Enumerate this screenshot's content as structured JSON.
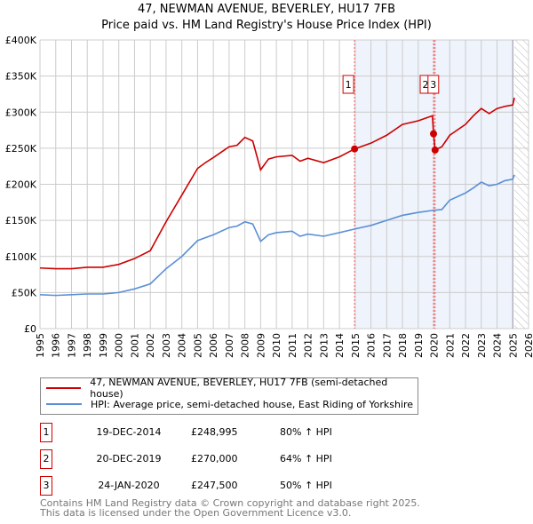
{
  "title": "47, NEWMAN AVENUE, BEVERLEY, HU17 7FB",
  "subtitle": "Price paid vs. HM Land Registry's House Price Index (HPI)",
  "chart_data": {
    "type": "line",
    "ylim": [
      0,
      400000
    ],
    "xlim": [
      1995,
      2026
    ],
    "yticks": [
      0,
      50000,
      100000,
      150000,
      200000,
      250000,
      300000,
      350000,
      400000
    ],
    "ytick_labels": [
      "£0",
      "£50K",
      "£100K",
      "£150K",
      "£200K",
      "£250K",
      "£300K",
      "£350K",
      "£400K"
    ],
    "xticks": [
      1995,
      1996,
      1997,
      1998,
      1999,
      2000,
      2001,
      2002,
      2003,
      2004,
      2005,
      2006,
      2007,
      2008,
      2009,
      2010,
      2011,
      2012,
      2013,
      2014,
      2015,
      2016,
      2017,
      2018,
      2019,
      2020,
      2021,
      2022,
      2023,
      2024,
      2025,
      2026
    ],
    "xtick_labels": [
      "1995",
      "1996",
      "1997",
      "1998",
      "1999",
      "2000",
      "2001",
      "2002",
      "2003",
      "2004",
      "2005",
      "2006",
      "2007",
      "2008",
      "2009",
      "2010",
      "2011",
      "2012",
      "2013",
      "2014",
      "2015",
      "2016",
      "2017",
      "2018",
      "2019",
      "2020",
      "2021",
      "2022",
      "2023",
      "2024",
      "2025",
      "2026"
    ],
    "grid": true,
    "shaded_range": [
      2014.96,
      2025.0
    ],
    "forecast_hatch_from": 2025.1,
    "series": [
      {
        "name": "47, NEWMAN AVENUE, BEVERLEY, HU17 7FB (semi-detached house)",
        "color": "#cc0000",
        "x": [
          1995,
          1996,
          1997,
          1998,
          1999,
          2000,
          2001,
          2002,
          2003,
          2004,
          2005,
          2005.5,
          2006,
          2007,
          2007.5,
          2008,
          2008.5,
          2009,
          2009.5,
          2010,
          2011,
          2011.5,
          2012,
          2013,
          2014,
          2014.96,
          2016,
          2017,
          2018,
          2019,
          2019.9,
          2019.97,
          2020.07,
          2020.5,
          2021,
          2022,
          2022.5,
          2023,
          2023.5,
          2024,
          2024.5,
          2025,
          2025.1
        ],
        "y": [
          84000,
          83000,
          83000,
          85000,
          85000,
          89000,
          97000,
          108000,
          148000,
          185000,
          222000,
          230000,
          237000,
          252000,
          254000,
          265000,
          260000,
          220000,
          235000,
          238000,
          240000,
          232000,
          236000,
          230000,
          238000,
          248995,
          257000,
          268000,
          283000,
          288000,
          295000,
          270000,
          247500,
          252000,
          268000,
          283000,
          295000,
          305000,
          298000,
          305000,
          308000,
          310000,
          320000
        ]
      },
      {
        "name": "HPI: Average price, semi-detached house, East Riding of Yorkshire",
        "color": "#5b8fd6",
        "x": [
          1995,
          1996,
          1997,
          1998,
          1999,
          2000,
          2001,
          2002,
          2003,
          2004,
          2005,
          2006,
          2007,
          2007.5,
          2008,
          2008.5,
          2009,
          2009.5,
          2010,
          2011,
          2011.5,
          2012,
          2013,
          2014,
          2014.96,
          2016,
          2017,
          2018,
          2019,
          2019.97,
          2020.5,
          2021,
          2022,
          2022.5,
          2023,
          2023.5,
          2024,
          2024.5,
          2025,
          2025.1
        ],
        "y": [
          47000,
          46000,
          47000,
          48000,
          48000,
          50000,
          55000,
          62000,
          83000,
          100000,
          122000,
          130000,
          140000,
          142000,
          148000,
          145000,
          121000,
          130000,
          133000,
          135000,
          128000,
          131000,
          128000,
          133000,
          138000,
          143000,
          150000,
          157000,
          161000,
          164000,
          165000,
          178000,
          188000,
          195000,
          203000,
          198000,
          200000,
          205000,
          207000,
          213000
        ]
      }
    ],
    "sales": [
      {
        "label": "1",
        "date": "19-DEC-2014",
        "x": 2014.96,
        "price": "£248,995",
        "value": 248995,
        "hpi": "80% ↑ HPI"
      },
      {
        "label": "2",
        "date": "20-DEC-2019",
        "x": 2019.97,
        "price": "£270,000",
        "value": 270000,
        "hpi": "64% ↑ HPI"
      },
      {
        "label": "3",
        "date": "24-JAN-2020",
        "x": 2020.07,
        "price": "£247,500",
        "value": 247500,
        "hpi": "50% ↑ HPI"
      }
    ]
  },
  "legend": {
    "red": "47, NEWMAN AVENUE, BEVERLEY, HU17 7FB (semi-detached house)",
    "blue": "HPI: Average price, semi-detached house, East Riding of Yorkshire"
  },
  "footer": {
    "line1": "Contains HM Land Registry data © Crown copyright and database right 2025.",
    "line2": "This data is licensed under the Open Government Licence v3.0."
  }
}
